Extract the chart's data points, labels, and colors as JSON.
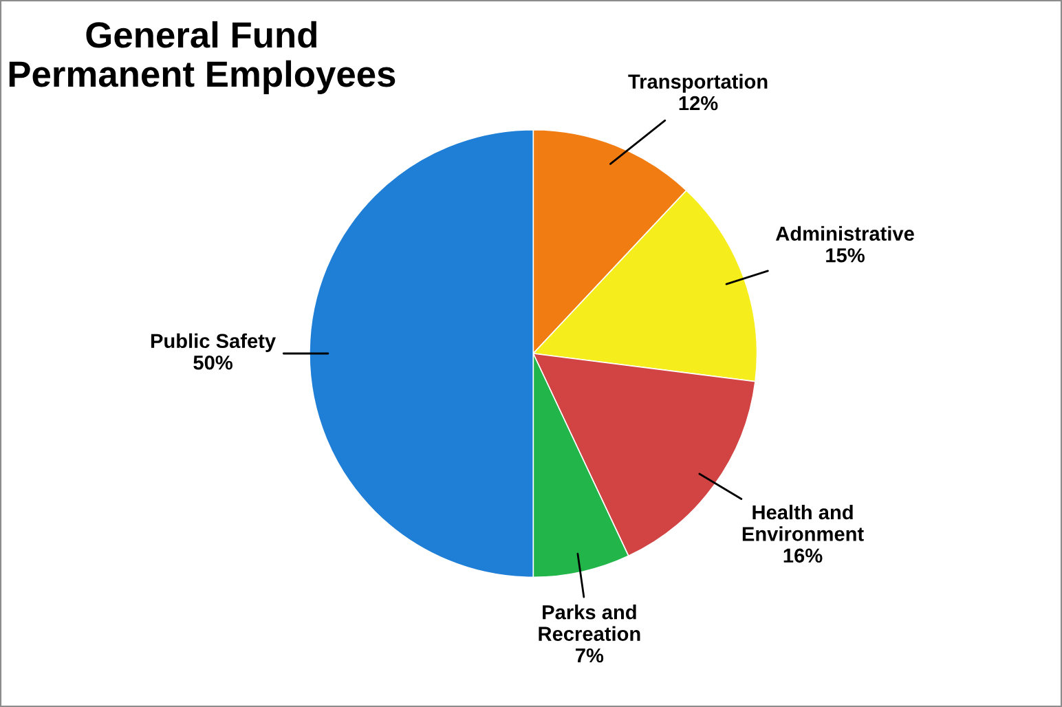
{
  "chart_data": {
    "type": "pie",
    "title": "General Fund\nPermanent Employees",
    "categories": [
      "Transportation",
      "Administrative",
      "Health and\nEnvironment",
      "Parks and\nRecreation",
      "Public Safety"
    ],
    "values": [
      12,
      15,
      16,
      7,
      50
    ],
    "value_labels": [
      "12%",
      "15%",
      "16%",
      "7%",
      "50%"
    ],
    "colors": [
      "#f07c12",
      "#f6ee1c",
      "#d24444",
      "#22b54a",
      "#1f7ed6"
    ],
    "legend": false
  }
}
